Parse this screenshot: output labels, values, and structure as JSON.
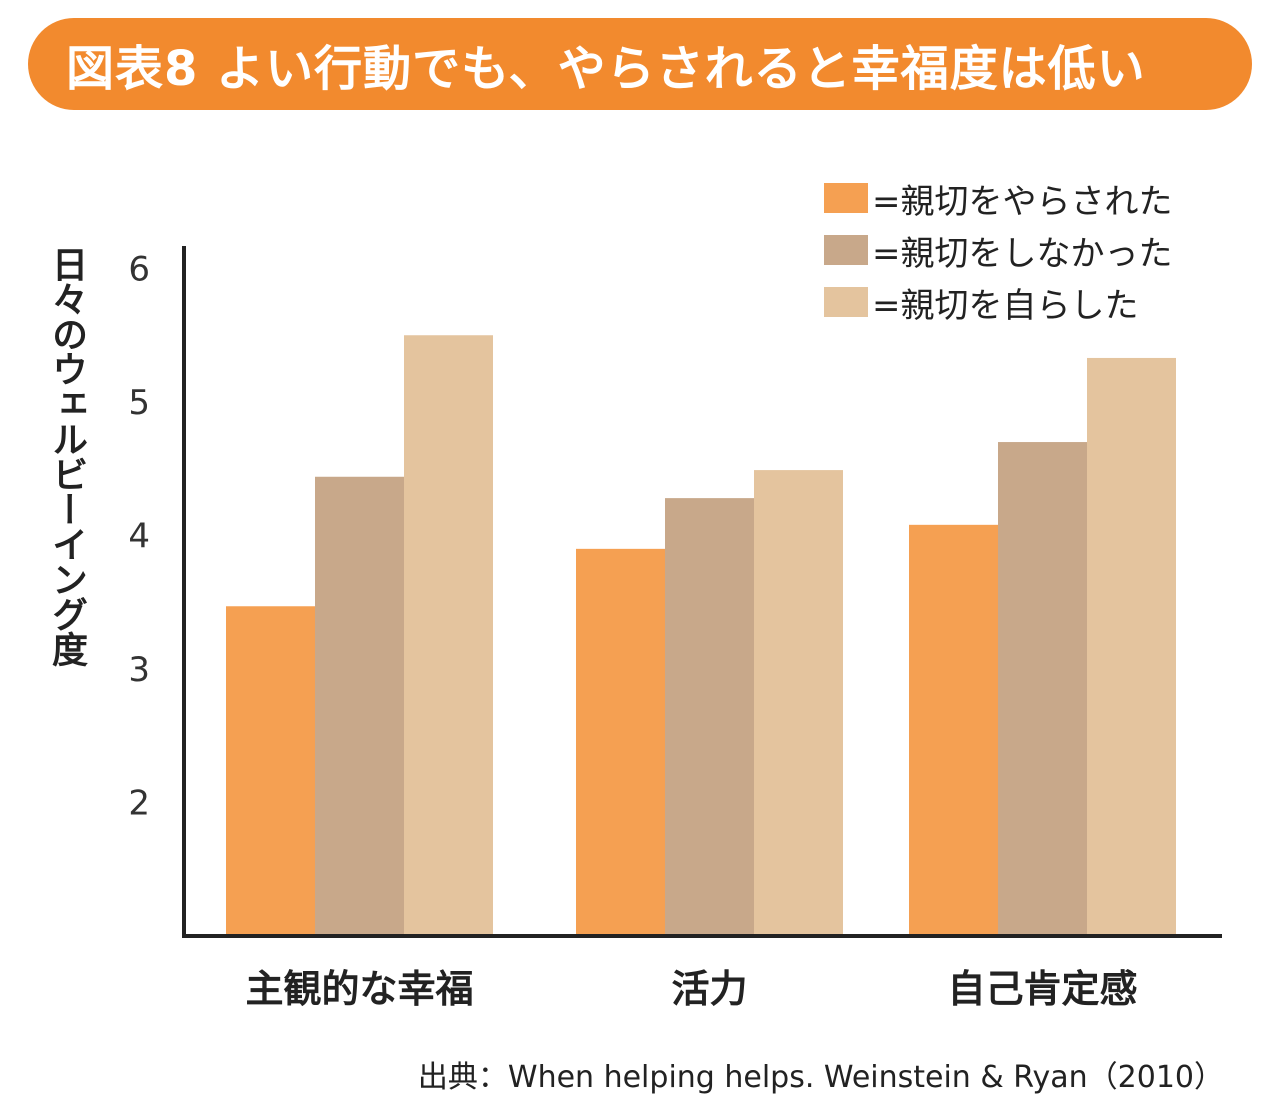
{
  "title": "図表8 よい行動でも、やらされると幸福度は低い",
  "colors": {
    "title_bg": "#F28A2E",
    "axis": "#222222"
  },
  "source": "出典：When helping helps. Weinstein & Ryan（2010）",
  "chart_data": {
    "type": "bar",
    "title": "図表8 よい行動でも、やらされると幸福度は低い",
    "xlabel": "",
    "ylabel": "日々のウェルビーイング度",
    "ylim": [
      1,
      6
    ],
    "yticks": [
      "2",
      "3",
      "4",
      "5",
      "6"
    ],
    "legend_position": "top-right",
    "categories": [
      "主観的な幸福",
      "活力",
      "自己肯定感"
    ],
    "series": [
      {
        "name": "=親切をやらされた",
        "color": "#F5A052",
        "values": [
          3.47,
          3.9,
          4.08
        ]
      },
      {
        "name": "=親切をしなかった",
        "color": "#C8A88A",
        "values": [
          4.44,
          4.28,
          4.7
        ]
      },
      {
        "name": "=親切を自らした",
        "color": "#E4C49E",
        "values": [
          5.5,
          4.49,
          5.33
        ]
      }
    ]
  }
}
